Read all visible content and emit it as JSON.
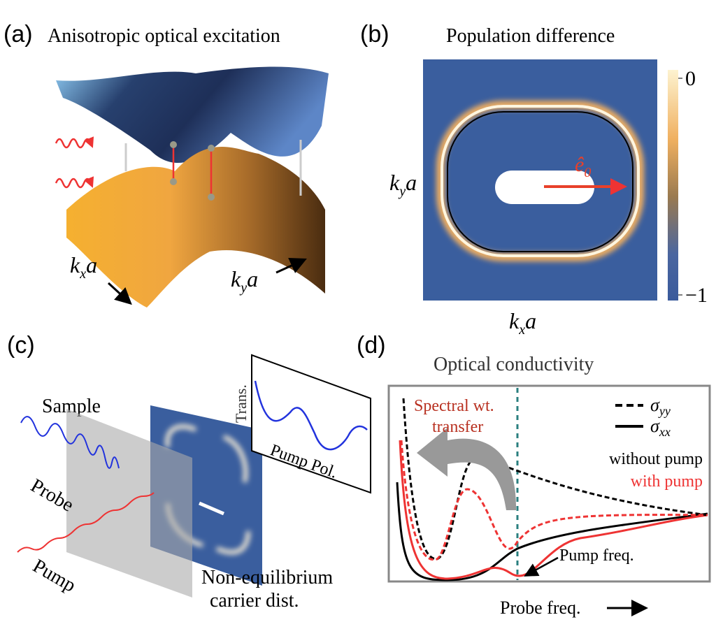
{
  "panel_a": {
    "label": "(a)",
    "title": "Anisotropic optical excitation",
    "kx": {
      "base": "k",
      "sub": "x",
      "tail": "a"
    },
    "ky": {
      "base": "k",
      "sub": "y",
      "tail": "a"
    }
  },
  "panel_b": {
    "label": "(b)",
    "title": "Population difference",
    "colorbar_ticks": [
      0,
      {
        "value": -1,
        "label": "−1"
      }
    ],
    "ky": {
      "base": "k",
      "sub": "y",
      "tail": "a"
    },
    "kx": {
      "base": "k",
      "sub": "x",
      "tail": "a"
    },
    "vector": {
      "base": "ê",
      "sub": "0"
    }
  },
  "panel_c": {
    "label": "(c)",
    "sample": "Sample",
    "probe": "Probe",
    "pump": "Pump",
    "dist": [
      "Non-equilibrium",
      "carrier dist."
    ],
    "inset_y": "Trans.",
    "inset_x": "Pump Pol."
  },
  "panel_d": {
    "label": "(d)",
    "title": "Optical conductivity",
    "transfer": [
      "Spectral wt.",
      "transfer"
    ],
    "legend": [
      {
        "symbol": "σ",
        "sub": "yy"
      },
      {
        "symbol": "σ",
        "sub": "xx"
      }
    ],
    "without": "without pump",
    "with": "with pump",
    "pump_freq": "Pump freq.",
    "probe_freq": "Probe freq."
  }
}
